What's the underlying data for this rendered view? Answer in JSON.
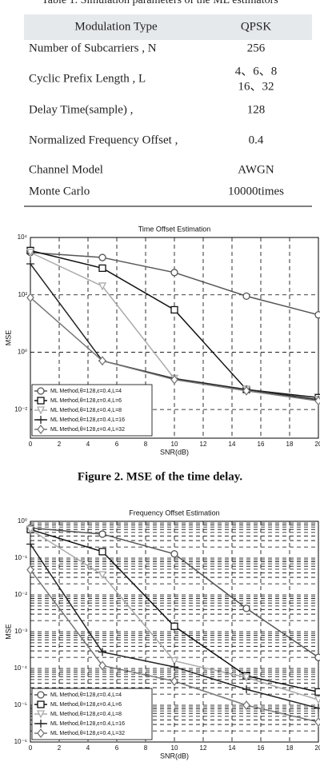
{
  "table": {
    "caption": "Table 1. Simulation parameters of the ML estimators",
    "header": [
      "Modulation Type",
      "QPSK"
    ],
    "rows": [
      [
        "Number of Subcarriers , N",
        "256"
      ],
      [
        "Cyclic Prefix Length , L",
        [
          "4、6、8",
          "16、32"
        ]
      ],
      [
        "Delay Time(sample) ,",
        "128"
      ],
      [
        "Normalized Frequency Offset ,",
        "0.4"
      ],
      [
        "Channel Model",
        "AWGN"
      ],
      [
        "Monte Carlo",
        "10000times"
      ]
    ]
  },
  "chart_data": [
    {
      "type": "line",
      "title": "Time Offset Estimation",
      "caption": "Figure 2. MSE of the time delay.",
      "xlabel": "SNR(dB)",
      "ylabel": "MSE",
      "log_y": true,
      "grid": true,
      "minor_grid": false,
      "legend": "lower left",
      "x": [
        0,
        5,
        10,
        15,
        20
      ],
      "xlim": [
        0,
        20
      ],
      "xticks": [
        0,
        2,
        4,
        6,
        8,
        10,
        12,
        14,
        16,
        18,
        20
      ],
      "ylim": [
        0.001,
        10000
      ],
      "yticks": [
        {
          "value": 0.01,
          "label": "10⁻²"
        },
        {
          "value": 1,
          "label": "10⁰"
        },
        {
          "value": 100,
          "label": "10²"
        },
        {
          "value": 10000,
          "label": "10⁴"
        }
      ],
      "series": [
        {
          "name": "ML Method,θ=128,ε=0.4,L=4",
          "color": "#555555",
          "marker": "circle",
          "values": [
            3000,
            2000,
            600,
            90,
            20
          ]
        },
        {
          "name": "ML Method,θ=128,ε=0.4,L=6",
          "color": "#111111",
          "marker": "square",
          "values": [
            3500,
            850,
            30,
            0.05,
            0.026
          ]
        },
        {
          "name": "ML Method,θ=128,ε=0.4,L=8",
          "color": "#aaaaaa",
          "marker": "triangle",
          "values": [
            3000,
            200,
            0.12,
            0.05,
            0.022
          ]
        },
        {
          "name": "ML Method,θ=128,ε=0.4,L=16",
          "color": "#222222",
          "marker": "plus",
          "values": [
            1200,
            0.5,
            0.12,
            0.05,
            0.022
          ]
        },
        {
          "name": "ML Method,θ=128,ε=0.4,L=32",
          "color": "#777777",
          "marker": "diamond",
          "values": [
            80,
            0.5,
            0.11,
            0.045,
            0.02
          ]
        }
      ]
    },
    {
      "type": "line",
      "title": "Frequency Offset Estimation",
      "xlabel": "SNR(dB)",
      "ylabel": "MSE",
      "log_y": true,
      "grid": true,
      "minor_grid": true,
      "legend": "lower left",
      "x": [
        0,
        5,
        10,
        15,
        20
      ],
      "xlim": [
        0,
        20
      ],
      "xticks": [
        0,
        2,
        4,
        6,
        8,
        10,
        12,
        14,
        16,
        18,
        20
      ],
      "ylim": [
        1e-06,
        1
      ],
      "yticks": [
        {
          "value": 1e-06,
          "label": "10⁻⁶"
        },
        {
          "value": 1e-05,
          "label": "10⁻⁵"
        },
        {
          "value": 0.0001,
          "label": "10⁻⁴"
        },
        {
          "value": 0.001,
          "label": "10⁻³"
        },
        {
          "value": 0.01,
          "label": "10⁻²"
        },
        {
          "value": 0.1,
          "label": "10⁻¹"
        },
        {
          "value": 1,
          "label": "10⁰"
        }
      ],
      "series": [
        {
          "name": "ML Method,θ=128,ε=0.4,L=4",
          "color": "#555555",
          "marker": "circle",
          "values": [
            0.66,
            0.45,
            0.13,
            0.0043,
            0.0002
          ]
        },
        {
          "name": "ML Method,θ=128,ε=0.4,L=6",
          "color": "#111111",
          "marker": "square",
          "values": [
            0.6,
            0.15,
            0.0014,
            6.3e-05,
            2.3e-05
          ]
        },
        {
          "name": "ML Method,θ=128,ε=0.4,L=8",
          "color": "#aaaaaa",
          "marker": "triangle",
          "values": [
            0.6,
            0.035,
            0.00016,
            5.7e-05,
            1.4e-05
          ]
        },
        {
          "name": "ML Method,θ=128,ε=0.4,L=16",
          "color": "#222222",
          "marker": "plus",
          "values": [
            0.24,
            0.00028,
            0.00011,
            2.7e-05,
            8.3e-06
          ]
        },
        {
          "name": "ML Method,θ=128,ε=0.4,L=32",
          "color": "#777777",
          "marker": "diamond",
          "values": [
            0.048,
            0.00012,
            4.5e-05,
            1e-05,
            3.5e-06
          ]
        }
      ]
    }
  ]
}
